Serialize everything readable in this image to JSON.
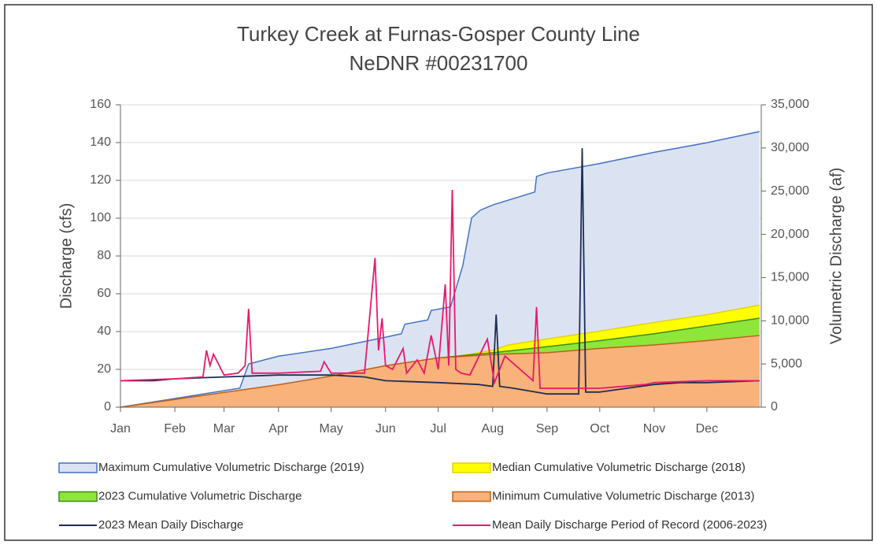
{
  "chart_data": {
    "type": "line",
    "title": [
      "Turkey Creek at Furnas-Gosper County Line",
      "NeDNR #00231700"
    ],
    "ylabel": "Discharge (cfs)",
    "y2label": "Volumetric Discharge (af)",
    "xlim": [
      1,
      366
    ],
    "xticks": [
      {
        "value": 1,
        "label": "Jan"
      },
      {
        "value": 32,
        "label": "Feb"
      },
      {
        "value": 60,
        "label": "Mar"
      },
      {
        "value": 91,
        "label": "Apr"
      },
      {
        "value": 121,
        "label": "May"
      },
      {
        "value": 152,
        "label": "Jun"
      },
      {
        "value": 182,
        "label": "Jul"
      },
      {
        "value": 213,
        "label": "Aug"
      },
      {
        "value": 244,
        "label": "Sep"
      },
      {
        "value": 274,
        "label": "Oct"
      },
      {
        "value": 305,
        "label": "Nov"
      },
      {
        "value": 335,
        "label": "Dec"
      }
    ],
    "ylim": [
      0,
      160
    ],
    "yticks": [
      0,
      20,
      40,
      60,
      80,
      100,
      120,
      140,
      160
    ],
    "y2lim": [
      0,
      35000
    ],
    "y2ticks": [
      0,
      {
        "value": 5000,
        "label": "5,000"
      },
      {
        "value": 10000,
        "label": "10,000"
      },
      {
        "value": 15000,
        "label": "15,000"
      },
      {
        "value": 20000,
        "label": "20,000"
      },
      {
        "value": 25000,
        "label": "25,000"
      },
      {
        "value": 30000,
        "label": "30,000"
      },
      {
        "value": 35000,
        "label": "35,000"
      }
    ],
    "grid": true,
    "legend": "bottom",
    "series": [
      {
        "name": "Maximum Cumulative Volumetric Discharge (2019)",
        "kind": "area",
        "axis": "y2",
        "color": "#4472c4",
        "fill": "#dbe3f2",
        "x": [
          1,
          69,
          74,
          91,
          121,
          152,
          161,
          163,
          176,
          178,
          189,
          196,
          201,
          206,
          213,
          237,
          238,
          244,
          274,
          305,
          335,
          365
        ],
        "values": [
          0,
          2200,
          5000,
          5900,
          6800,
          8100,
          8500,
          9600,
          10100,
          11200,
          11600,
          16400,
          21900,
          22800,
          23400,
          24900,
          26700,
          27100,
          28200,
          29500,
          30600,
          31900
        ]
      },
      {
        "name": "Median Cumulative Volumetric Discharge (2018)",
        "kind": "area",
        "axis": "y2",
        "color": "#e6d200",
        "fill": "#ffff00",
        "x": [
          1,
          91,
          121,
          152,
          182,
          213,
          222,
          244,
          274,
          305,
          335,
          365
        ],
        "values": [
          0,
          2300,
          3500,
          4800,
          5500,
          6600,
          7200,
          7900,
          8800,
          9800,
          10700,
          11800
        ]
      },
      {
        "name": "2023 Cumulative Volumetric Discharge",
        "kind": "area",
        "axis": "y2",
        "color": "#3d8a1a",
        "fill": "#8ee63a",
        "x": [
          1,
          91,
          121,
          152,
          182,
          213,
          244,
          274,
          305,
          335,
          365
        ],
        "values": [
          0,
          2300,
          3500,
          4800,
          5700,
          6300,
          7000,
          7700,
          8500,
          9400,
          10300
        ]
      },
      {
        "name": "Minimum Cumulative Volumetric Discharge (2013)",
        "kind": "area",
        "axis": "y2",
        "color": "#c0601a",
        "fill": "#f8b27a",
        "x": [
          1,
          91,
          121,
          152,
          182,
          213,
          244,
          274,
          305,
          335,
          365
        ],
        "values": [
          0,
          2600,
          3600,
          4800,
          5700,
          6100,
          6300,
          6800,
          7200,
          7700,
          8300
        ]
      },
      {
        "name": "2023 Mean Daily Discharge",
        "kind": "line",
        "axis": "y",
        "color": "#1f2d55",
        "x": [
          1,
          20,
          32,
          60,
          91,
          121,
          140,
          152,
          182,
          205,
          213,
          215,
          217,
          225,
          244,
          262,
          264,
          266,
          268,
          274,
          305,
          320,
          335,
          365
        ],
        "values": [
          14,
          14,
          15,
          16,
          17,
          17,
          16,
          14,
          13,
          12,
          11,
          49,
          11,
          10,
          7,
          7,
          137,
          8,
          8,
          8,
          12,
          13,
          13,
          14
        ]
      },
      {
        "name": "Mean Daily Discharge Period of Record (2006-2023)",
        "kind": "line",
        "axis": "y",
        "color": "#e8196b",
        "x": [
          1,
          32,
          48,
          50,
          52,
          54,
          60,
          68,
          72,
          74,
          76,
          91,
          115,
          117,
          121,
          140,
          146,
          148,
          150,
          152,
          156,
          162,
          164,
          170,
          174,
          178,
          182,
          186,
          188,
          190,
          192,
          195,
          200,
          210,
          214,
          220,
          236,
          238,
          240,
          244,
          260,
          274,
          300,
          305,
          335,
          365
        ],
        "values": [
          14,
          15,
          16,
          30,
          22,
          28,
          17,
          18,
          22,
          52,
          18,
          18,
          19,
          24,
          18,
          18,
          79,
          30,
          47,
          22,
          20,
          31,
          18,
          25,
          18,
          38,
          20,
          65,
          22,
          115,
          20,
          18,
          17,
          36,
          13,
          27,
          14,
          53,
          10,
          10,
          10,
          10,
          12,
          13,
          14,
          14
        ]
      }
    ]
  }
}
